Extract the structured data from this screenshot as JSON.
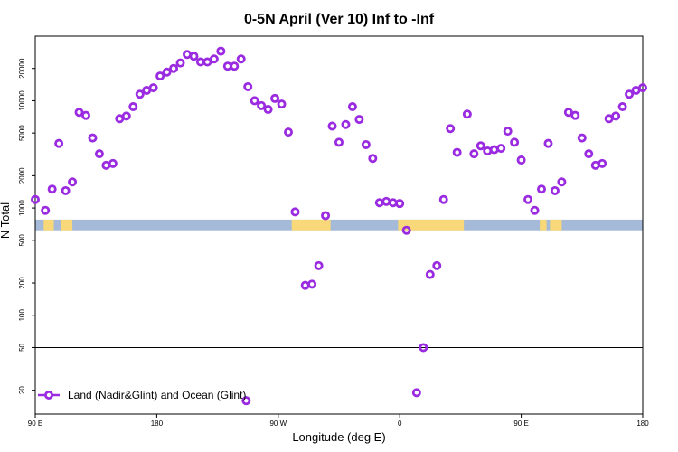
{
  "chart_data": {
    "type": "scatter",
    "title": "0-5N April (Ver 10)   Inf to -Inf",
    "xlabel": "Longitude (deg E)",
    "ylabel": "N Total",
    "xlim": [
      0,
      360
    ],
    "ylim": [
      12,
      40000
    ],
    "yscale": "log",
    "grid": false,
    "legend_position": "bottom-left",
    "x_axis_note": "x is degrees east of the 90 E left edge",
    "x_ticks": [
      {
        "x": 0,
        "label": "90 E"
      },
      {
        "x": 72,
        "label": "180"
      },
      {
        "x": 144,
        "label": "90 W"
      },
      {
        "x": 216,
        "label": "0"
      },
      {
        "x": 288,
        "label": "90 E"
      },
      {
        "x": 360,
        "label": "180"
      }
    ],
    "y_ticks": [
      {
        "y": 20,
        "label": "20"
      },
      {
        "y": 50,
        "label": "50"
      },
      {
        "y": 100,
        "label": "100"
      },
      {
        "y": 200,
        "label": "200"
      },
      {
        "y": 500,
        "label": "500"
      },
      {
        "y": 1000,
        "label": "1000"
      },
      {
        "y": 2000,
        "label": "2000"
      },
      {
        "y": 5000,
        "label": "5000"
      },
      {
        "y": 10000,
        "label": "10000"
      },
      {
        "y": 20000,
        "label": "20000"
      }
    ],
    "reference_line": {
      "y": 50,
      "color": "#000000"
    },
    "band": {
      "y_low": 620,
      "y_high": 780,
      "ocean_color": "#a5bad8",
      "land_color": "#f8d878"
    },
    "land_segments": [
      {
        "x0": 5,
        "x1": 11
      },
      {
        "x0": 15,
        "x1": 22
      },
      {
        "x0": 152,
        "x1": 175
      },
      {
        "x0": 215,
        "x1": 254
      },
      {
        "x0": 299,
        "x1": 303
      },
      {
        "x0": 305,
        "x1": 312
      }
    ],
    "series": [
      {
        "name": "Land (Nadir&Glint) and Ocean (Glint)",
        "color": "#9a2be0",
        "points": [
          [
            0,
            1200
          ],
          [
            6,
            950
          ],
          [
            10,
            1500
          ],
          [
            14,
            4000
          ],
          [
            18,
            1450
          ],
          [
            22,
            1750
          ],
          [
            26,
            7800
          ],
          [
            30,
            7300
          ],
          [
            34,
            4500
          ],
          [
            38,
            3200
          ],
          [
            42,
            2500
          ],
          [
            46,
            2600
          ],
          [
            50,
            6800
          ],
          [
            54,
            7200
          ],
          [
            58,
            8800
          ],
          [
            62,
            11500
          ],
          [
            66,
            12500
          ],
          [
            70,
            13200
          ],
          [
            74,
            17000
          ],
          [
            78,
            18500
          ],
          [
            82,
            20000
          ],
          [
            86,
            22500
          ],
          [
            90,
            27000
          ],
          [
            94,
            26000
          ],
          [
            98,
            23000
          ],
          [
            102,
            23000
          ],
          [
            106,
            24500
          ],
          [
            110,
            29000
          ],
          [
            114,
            21000
          ],
          [
            118,
            21000
          ],
          [
            122,
            24500
          ],
          [
            126,
            13500
          ],
          [
            130,
            10000
          ],
          [
            134,
            9000
          ],
          [
            138,
            8300
          ],
          [
            142,
            10500
          ],
          [
            146,
            9300
          ],
          [
            150,
            5100
          ],
          [
            154,
            920
          ],
          [
            160,
            190
          ],
          [
            164,
            195
          ],
          [
            168,
            290
          ],
          [
            172,
            850
          ],
          [
            176,
            5800
          ],
          [
            180,
            4100
          ],
          [
            184,
            6000
          ],
          [
            188,
            8800
          ],
          [
            192,
            6700
          ],
          [
            196,
            3900
          ],
          [
            200,
            2900
          ],
          [
            204,
            1120
          ],
          [
            208,
            1150
          ],
          [
            212,
            1120
          ],
          [
            216,
            1100
          ],
          [
            220,
            620
          ],
          [
            226,
            19
          ],
          [
            230,
            50
          ],
          [
            234,
            240
          ],
          [
            238,
            290
          ],
          [
            242,
            1200
          ],
          [
            246,
            5500
          ],
          [
            250,
            3300
          ],
          [
            256,
            7500
          ],
          [
            260,
            3200
          ],
          [
            264,
            3800
          ],
          [
            268,
            3400
          ],
          [
            272,
            3500
          ],
          [
            276,
            3600
          ],
          [
            280,
            5200
          ],
          [
            284,
            4100
          ],
          [
            288,
            2800
          ],
          [
            292,
            1200
          ],
          [
            296,
            950
          ],
          [
            300,
            1500
          ],
          [
            304,
            4000
          ],
          [
            308,
            1450
          ],
          [
            312,
            1750
          ],
          [
            316,
            7800
          ],
          [
            320,
            7300
          ],
          [
            324,
            4500
          ],
          [
            328,
            3200
          ],
          [
            332,
            2500
          ],
          [
            336,
            2600
          ],
          [
            340,
            6800
          ],
          [
            344,
            7200
          ],
          [
            348,
            8800
          ],
          [
            352,
            11500
          ],
          [
            356,
            12500
          ],
          [
            360,
            13200
          ],
          [
            125,
            16
          ]
        ]
      }
    ]
  }
}
